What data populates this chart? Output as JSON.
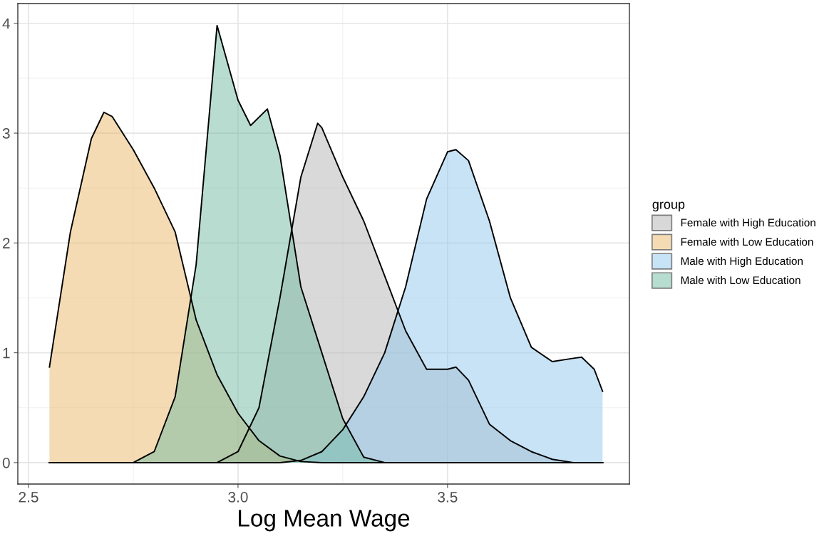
{
  "chart_data": {
    "type": "area",
    "xlabel": "Log Mean Wage",
    "legend_title": "group",
    "legend": "right",
    "grid": true,
    "xlim": [
      2.4745,
      3.934
    ],
    "ylim": [
      -0.195,
      4.18
    ],
    "xticks": [
      2.5,
      {
        "value": 3,
        "label": "3.0"
      },
      3.5
    ],
    "yticks": [
      0,
      1,
      2,
      3,
      4
    ],
    "series": [
      {
        "name": "Female with High Education",
        "color": "#b3b3b3",
        "x": [
          2.55,
          2.9,
          2.95,
          3.0,
          3.05,
          3.1,
          3.15,
          3.19,
          3.2,
          3.25,
          3.3,
          3.35,
          3.4,
          3.45,
          3.5,
          3.52,
          3.55,
          3.6,
          3.65,
          3.7,
          3.75,
          3.8,
          3.87
        ],
        "values": [
          0,
          0,
          0,
          0.1,
          0.5,
          1.5,
          2.6,
          3.09,
          3.05,
          2.6,
          2.2,
          1.7,
          1.2,
          0.85,
          0.85,
          0.87,
          0.75,
          0.35,
          0.2,
          0.1,
          0.03,
          0,
          0
        ]
      },
      {
        "name": "Female with Low Education",
        "color": "#eab86a",
        "x": [
          2.55,
          2.6,
          2.65,
          2.68,
          2.7,
          2.75,
          2.8,
          2.85,
          2.9,
          2.95,
          3.0,
          3.05,
          3.1,
          3.15,
          3.2,
          3.87
        ],
        "values": [
          0.87,
          2.1,
          2.95,
          3.19,
          3.15,
          2.85,
          2.5,
          2.1,
          1.3,
          0.8,
          0.45,
          0.2,
          0.06,
          0.01,
          0,
          0
        ]
      },
      {
        "name": "Male with High Education",
        "color": "#91c8ee",
        "x": [
          2.55,
          3.1,
          3.15,
          3.2,
          3.25,
          3.3,
          3.35,
          3.4,
          3.45,
          3.5,
          3.52,
          3.55,
          3.6,
          3.65,
          3.7,
          3.75,
          3.8,
          3.82,
          3.85,
          3.87
        ],
        "values": [
          0,
          0,
          0.02,
          0.1,
          0.3,
          0.6,
          1.0,
          1.6,
          2.4,
          2.83,
          2.85,
          2.75,
          2.2,
          1.5,
          1.05,
          0.92,
          0.95,
          0.96,
          0.85,
          0.65
        ]
      },
      {
        "name": "Male with Low Education",
        "color": "#72bba2",
        "x": [
          2.55,
          2.75,
          2.8,
          2.85,
          2.9,
          2.95,
          3.0,
          3.03,
          3.07,
          3.1,
          3.15,
          3.2,
          3.25,
          3.3,
          3.35,
          3.87
        ],
        "values": [
          0,
          0,
          0.1,
          0.6,
          1.8,
          3.98,
          3.3,
          3.07,
          3.22,
          2.8,
          1.6,
          1.0,
          0.4,
          0.05,
          0,
          0
        ]
      }
    ]
  }
}
